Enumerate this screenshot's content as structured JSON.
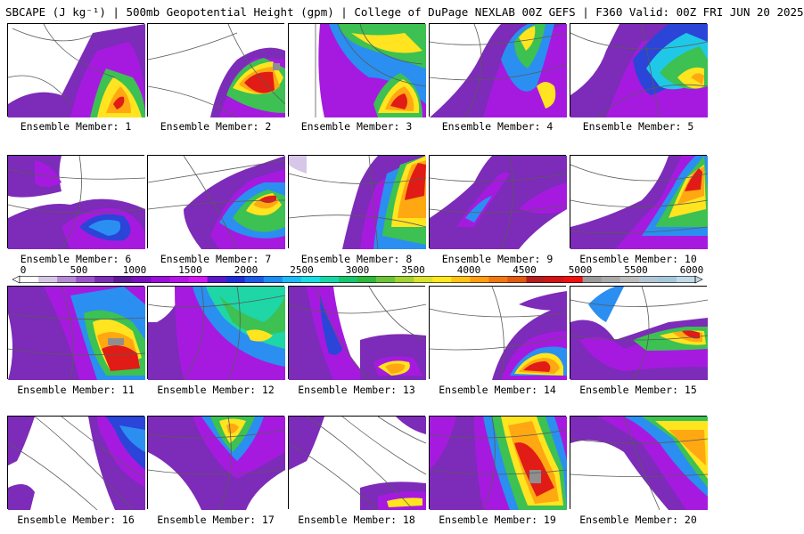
{
  "title": "SBCAPE (J kg⁻¹) | 500mb Geopotential Height (gpm) | College of DuPage NEXLAB 00Z GEFS | F360 Valid: 00Z FRI JUN 20 2025",
  "colorbar": {
    "ticks": [
      "0",
      "500",
      "1000",
      "1500",
      "2000",
      "2500",
      "3000",
      "3500",
      "4000",
      "4500",
      "5000",
      "5500",
      "6000"
    ],
    "colors": [
      "#ffffff",
      "#d9c7e6",
      "#b689d3",
      "#9b55c9",
      "#7c2fb4",
      "#5e1a99",
      "#7a0fbf",
      "#9a10d8",
      "#b613e8",
      "#d018f0",
      "#5a18c8",
      "#1e2dd2",
      "#1e5ae6",
      "#1e8cf0",
      "#1ebaf5",
      "#19dde0",
      "#19d6a8",
      "#19c46e",
      "#2eb83c",
      "#6cc33a",
      "#a2d233",
      "#d9e22c",
      "#ffe81f",
      "#ffc318",
      "#ff9d12",
      "#f07812",
      "#e05a14",
      "#b41e1e",
      "#d21414",
      "#f01010",
      "#9a9a9a",
      "#aaaaaa",
      "#bbbbbb",
      "#b3c6d6",
      "#a6c7db",
      "#c0dae8"
    ]
  },
  "panels": [
    {
      "label": "Ensemble Member: 1"
    },
    {
      "label": "Ensemble Member: 2"
    },
    {
      "label": "Ensemble Member: 3"
    },
    {
      "label": "Ensemble Member: 4"
    },
    {
      "label": "Ensemble Member: 5"
    },
    {
      "label": "Ensemble Member: 6"
    },
    {
      "label": "Ensemble Member: 7"
    },
    {
      "label": "Ensemble Member: 8"
    },
    {
      "label": "Ensemble Member: 9"
    },
    {
      "label": "Ensemble Member: 10"
    },
    {
      "label": "Ensemble Member: 11"
    },
    {
      "label": "Ensemble Member: 12"
    },
    {
      "label": "Ensemble Member: 13"
    },
    {
      "label": "Ensemble Member: 14"
    },
    {
      "label": "Ensemble Member: 15"
    },
    {
      "label": "Ensemble Member: 16"
    },
    {
      "label": "Ensemble Member: 17"
    },
    {
      "label": "Ensemble Member: 18"
    },
    {
      "label": "Ensemble Member: 19"
    },
    {
      "label": "Ensemble Member: 20"
    }
  ]
}
